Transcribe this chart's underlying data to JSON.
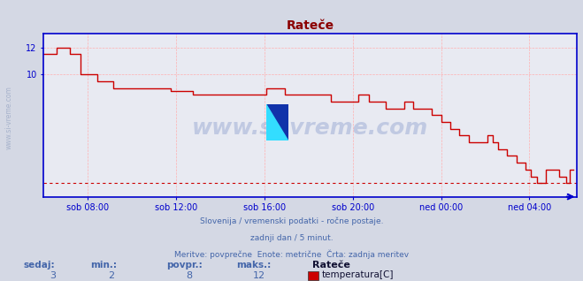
{
  "title": "Rateče",
  "title_color": "#8b0000",
  "bg_color": "#d4d8e4",
  "plot_bg_color": "#e8eaf2",
  "grid_color": "#ffb0b0",
  "axis_color": "#0000cc",
  "line_color": "#cc0000",
  "min_line_color": "#cc0000",
  "text_color": "#4466aa",
  "ylim_min": 1.0,
  "ylim_max": 13.0,
  "xlim_start": 0,
  "xlim_end": 290,
  "yticks": [
    10,
    12
  ],
  "ytick_labels": [
    "10",
    "12"
  ],
  "xtick_positions": [
    24,
    72,
    120,
    168,
    216,
    264
  ],
  "xtick_labels": [
    "sob 08:00",
    "sob 12:00",
    "sob 16:00",
    "sob 20:00",
    "ned 00:00",
    "ned 04:00"
  ],
  "min_value": 2.0,
  "footer_line1": "Slovenija / vremenski podatki - ročne postaje.",
  "footer_line2": "zadnji dan / 5 minut.",
  "footer_line3": "Meritve: povprečne  Enote: metrične  Črta: zadnja meritev",
  "stats_labels": [
    "sedaj:",
    "min.:",
    "povpr.:",
    "maks.:"
  ],
  "stats_values": [
    "3",
    "2",
    "8",
    "12"
  ],
  "legend_label": "Rateče",
  "legend_sublabel": "temperatura[C]",
  "legend_color": "#cc0000",
  "watermark": "www.si-vreme.com",
  "temperature_data": [
    [
      0,
      11.5
    ],
    [
      6,
      11.5
    ],
    [
      7,
      12.0
    ],
    [
      13,
      12.0
    ],
    [
      14,
      11.5
    ],
    [
      19,
      11.5
    ],
    [
      20,
      10.0
    ],
    [
      28,
      10.0
    ],
    [
      29,
      9.5
    ],
    [
      37,
      9.5
    ],
    [
      38,
      9.0
    ],
    [
      68,
      9.0
    ],
    [
      69,
      8.8
    ],
    [
      80,
      8.8
    ],
    [
      81,
      8.5
    ],
    [
      120,
      8.5
    ],
    [
      121,
      9.0
    ],
    [
      130,
      9.0
    ],
    [
      131,
      8.5
    ],
    [
      155,
      8.5
    ],
    [
      156,
      8.0
    ],
    [
      170,
      8.0
    ],
    [
      171,
      8.5
    ],
    [
      176,
      8.5
    ],
    [
      177,
      8.0
    ],
    [
      185,
      8.0
    ],
    [
      186,
      7.5
    ],
    [
      195,
      7.5
    ],
    [
      196,
      8.0
    ],
    [
      200,
      8.0
    ],
    [
      201,
      7.5
    ],
    [
      210,
      7.5
    ],
    [
      211,
      7.0
    ],
    [
      215,
      7.0
    ],
    [
      216,
      6.5
    ],
    [
      220,
      6.5
    ],
    [
      221,
      6.0
    ],
    [
      225,
      6.0
    ],
    [
      226,
      5.5
    ],
    [
      230,
      5.5
    ],
    [
      231,
      5.0
    ],
    [
      240,
      5.0
    ],
    [
      241,
      5.5
    ],
    [
      243,
      5.5
    ],
    [
      244,
      5.0
    ],
    [
      246,
      5.0
    ],
    [
      247,
      4.5
    ],
    [
      251,
      4.5
    ],
    [
      252,
      4.0
    ],
    [
      256,
      4.0
    ],
    [
      257,
      3.5
    ],
    [
      261,
      3.5
    ],
    [
      262,
      3.0
    ],
    [
      264,
      3.0
    ],
    [
      265,
      2.5
    ],
    [
      267,
      2.5
    ],
    [
      268,
      2.0
    ],
    [
      272,
      2.0
    ],
    [
      273,
      3.0
    ],
    [
      279,
      3.0
    ],
    [
      280,
      2.5
    ],
    [
      283,
      2.5
    ],
    [
      284,
      2.0
    ],
    [
      285,
      2.0
    ],
    [
      286,
      3.0
    ],
    [
      288,
      3.0
    ]
  ]
}
